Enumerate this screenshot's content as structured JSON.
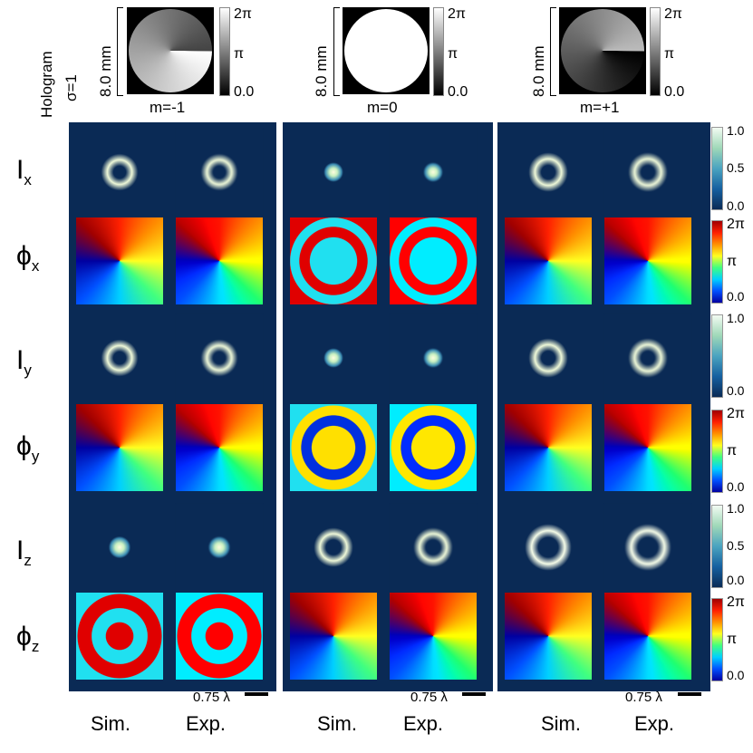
{
  "header": {
    "hologram_label": "Hologram",
    "sigma_label": "σ=1",
    "size_label": "8.0 mm",
    "phase_max": "2π",
    "phase_mid": "π",
    "phase_min": "0.0",
    "columns": [
      {
        "m_label": "m=-1"
      },
      {
        "m_label": "m=0"
      },
      {
        "m_label": "m=+1"
      }
    ]
  },
  "rows": [
    {
      "symbol": "I",
      "sub": "x",
      "kind": "intensity"
    },
    {
      "symbol": "ϕ",
      "sub": "x",
      "kind": "phase"
    },
    {
      "symbol": "I",
      "sub": "y",
      "kind": "intensity"
    },
    {
      "symbol": "ϕ",
      "sub": "y",
      "kind": "phase"
    },
    {
      "symbol": "I",
      "sub": "z",
      "kind": "intensity"
    },
    {
      "symbol": "ϕ",
      "sub": "z",
      "kind": "phase"
    }
  ],
  "colorbars": {
    "intensity": {
      "max": "1.0",
      "mid": "0.5",
      "min": "0.0"
    },
    "phase": {
      "max": "2π",
      "mid": "π",
      "min": "0.0"
    }
  },
  "scale_bar_label": "0.75 λ",
  "bottom_labels": {
    "sim": "Sim.",
    "exp": "Exp."
  }
}
